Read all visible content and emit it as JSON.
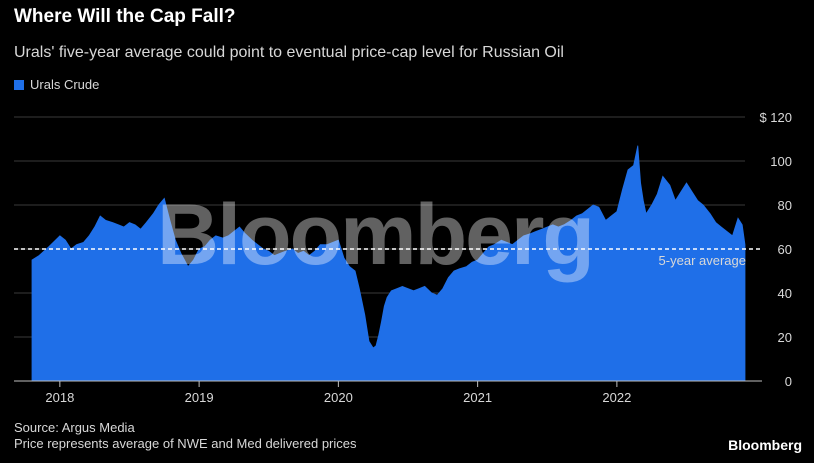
{
  "title": "Where Will the Cap Fall?",
  "subtitle": "Urals' five-year average could point to eventual price-cap level for Russian Oil",
  "legend": {
    "label": "Urals Crude"
  },
  "watermark": "Bloomberg",
  "source": "Source: Argus Media",
  "note": "Price represents average of NWE and Med delivered prices",
  "brand": "Bloomberg",
  "colors": {
    "series": "#1f6fe8",
    "grid": "#3a3a3a",
    "text": "#d8d8d8",
    "reference": "#ffffff"
  },
  "chart_data": {
    "type": "area",
    "title": "Where Will the Cap Fall?",
    "subtitle": "Urals' five-year average could point to eventual price-cap level for Russian Oil",
    "xlabel": "",
    "ylabel": "",
    "ylim": [
      0,
      120
    ],
    "xlim": [
      2017.8,
      2022.94
    ],
    "x_ticks": [
      2018,
      2019,
      2020,
      2021,
      2022
    ],
    "x_tick_labels": [
      "2018",
      "2019",
      "2020",
      "2021",
      "2022"
    ],
    "y_ticks": [
      0,
      20,
      40,
      60,
      80,
      100,
      120
    ],
    "y_tick_labels": [
      "0",
      "20",
      "40",
      "60",
      "80",
      "100",
      "$ 120"
    ],
    "grid": true,
    "legend_position": "top-left",
    "reference_line": {
      "label": "5-year average",
      "value": 60
    },
    "series": [
      {
        "name": "Urals Crude",
        "x": [
          2017.8,
          2017.85,
          2017.92,
          2018.0,
          2018.04,
          2018.08,
          2018.12,
          2018.17,
          2018.21,
          2018.25,
          2018.29,
          2018.33,
          2018.38,
          2018.42,
          2018.46,
          2018.5,
          2018.54,
          2018.58,
          2018.62,
          2018.67,
          2018.71,
          2018.75,
          2018.79,
          2018.83,
          2018.87,
          2018.92,
          2018.96,
          2019.0,
          2019.04,
          2019.08,
          2019.12,
          2019.17,
          2019.21,
          2019.25,
          2019.29,
          2019.33,
          2019.38,
          2019.42,
          2019.46,
          2019.5,
          2019.54,
          2019.58,
          2019.62,
          2019.67,
          2019.71,
          2019.75,
          2019.79,
          2019.83,
          2019.87,
          2019.92,
          2019.96,
          2020.0,
          2020.04,
          2020.08,
          2020.12,
          2020.15,
          2020.19,
          2020.22,
          2020.25,
          2020.27,
          2020.29,
          2020.31,
          2020.33,
          2020.35,
          2020.38,
          2020.42,
          2020.46,
          2020.5,
          2020.54,
          2020.58,
          2020.62,
          2020.67,
          2020.71,
          2020.75,
          2020.79,
          2020.83,
          2020.87,
          2020.92,
          2020.96,
          2021.0,
          2021.04,
          2021.08,
          2021.12,
          2021.17,
          2021.21,
          2021.25,
          2021.29,
          2021.33,
          2021.38,
          2021.42,
          2021.46,
          2021.5,
          2021.54,
          2021.58,
          2021.62,
          2021.67,
          2021.71,
          2021.75,
          2021.79,
          2021.83,
          2021.87,
          2021.92,
          2021.96,
          2022.0,
          2022.04,
          2022.08,
          2022.12,
          2022.15,
          2022.17,
          2022.19,
          2022.21,
          2022.25,
          2022.29,
          2022.33,
          2022.38,
          2022.42,
          2022.46,
          2022.5,
          2022.54,
          2022.58,
          2022.62,
          2022.67,
          2022.71,
          2022.75,
          2022.79,
          2022.83,
          2022.87,
          2022.9,
          2022.92
        ],
        "values": [
          55,
          57,
          61,
          66,
          64,
          60,
          62,
          63,
          66,
          70,
          75,
          73,
          72,
          71,
          70,
          72,
          71,
          69,
          72,
          76,
          80,
          83,
          73,
          64,
          58,
          52,
          55,
          60,
          61,
          64,
          66,
          65,
          66,
          68,
          70,
          67,
          64,
          62,
          60,
          59,
          57,
          58,
          59,
          60,
          58,
          59,
          57,
          59,
          62,
          62,
          63,
          64,
          56,
          52,
          50,
          42,
          30,
          18,
          15,
          16,
          21,
          27,
          34,
          38,
          41,
          42,
          43,
          42,
          41,
          42,
          43,
          40,
          39,
          42,
          47,
          50,
          51,
          52,
          54,
          55,
          58,
          61,
          62,
          64,
          63,
          62,
          64,
          66,
          67,
          68,
          69,
          70,
          71,
          70,
          71,
          73,
          75,
          76,
          78,
          80,
          79,
          73,
          75,
          77,
          87,
          96,
          98,
          107,
          90,
          82,
          76,
          80,
          85,
          93,
          89,
          82,
          86,
          90,
          86,
          82,
          80,
          76,
          72,
          70,
          68,
          66,
          74,
          71,
          62
        ]
      }
    ]
  }
}
